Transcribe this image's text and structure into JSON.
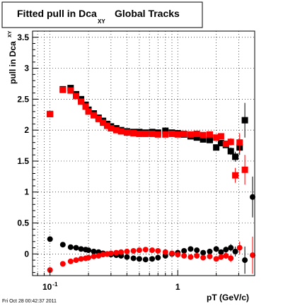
{
  "chart_data": {
    "type": "scatter",
    "title": "Fitted pull in Dca",
    "title_subscript": "XY",
    "title_suffix": "Global Tracks",
    "xlabel": "pT (GeV/c)",
    "ylabel": "pull in Dca",
    "ylabel_subscript": "XY",
    "x_scale": "log",
    "xlim": [
      0.073,
      4.0
    ],
    "ylim": [
      -0.35,
      3.6
    ],
    "grid": true,
    "footer": "Fri Oct 28 00:42:37 2011",
    "x_ticks": [
      {
        "value": 0.1,
        "label": "10",
        "exponent": "-1"
      },
      {
        "value": 1,
        "label": "1"
      }
    ],
    "y_ticks": [
      {
        "value": 0,
        "label": "0"
      },
      {
        "value": 0.5,
        "label": "0.5"
      },
      {
        "value": 1,
        "label": "1"
      },
      {
        "value": 1.5,
        "label": "1.5"
      },
      {
        "value": 2,
        "label": "2"
      },
      {
        "value": 2.5,
        "label": "2.5"
      },
      {
        "value": 3,
        "label": "3"
      },
      {
        "value": 3.5,
        "label": "3.5"
      }
    ],
    "series": [
      {
        "color": "#000000",
        "marker": "square",
        "points": [
          {
            "x": 0.1,
            "y": 2.26,
            "err": 0.01
          },
          {
            "x": 0.126,
            "y": 2.66,
            "err": 0.01
          },
          {
            "x": 0.145,
            "y": 2.68,
            "err": 0.01
          },
          {
            "x": 0.16,
            "y": 2.58,
            "err": 0.01
          },
          {
            "x": 0.175,
            "y": 2.5,
            "err": 0.01
          },
          {
            "x": 0.19,
            "y": 2.41,
            "err": 0.01
          },
          {
            "x": 0.2,
            "y": 2.33,
            "err": 0.01
          },
          {
            "x": 0.22,
            "y": 2.27,
            "err": 0.01
          },
          {
            "x": 0.24,
            "y": 2.2,
            "err": 0.01
          },
          {
            "x": 0.26,
            "y": 2.15,
            "err": 0.01
          },
          {
            "x": 0.28,
            "y": 2.1,
            "err": 0.01
          },
          {
            "x": 0.3,
            "y": 2.06,
            "err": 0.01
          },
          {
            "x": 0.33,
            "y": 2.03,
            "err": 0.01
          },
          {
            "x": 0.36,
            "y": 2.0,
            "err": 0.01
          },
          {
            "x": 0.4,
            "y": 1.98,
            "err": 0.01
          },
          {
            "x": 0.45,
            "y": 1.97,
            "err": 0.01
          },
          {
            "x": 0.5,
            "y": 1.97,
            "err": 0.01
          },
          {
            "x": 0.56,
            "y": 1.96,
            "err": 0.01
          },
          {
            "x": 0.63,
            "y": 1.97,
            "err": 0.01
          },
          {
            "x": 0.7,
            "y": 1.96,
            "err": 0.01
          },
          {
            "x": 0.8,
            "y": 1.99,
            "err": 0.01
          },
          {
            "x": 0.9,
            "y": 1.96,
            "err": 0.01
          },
          {
            "x": 1.0,
            "y": 1.95,
            "err": 0.01
          },
          {
            "x": 1.12,
            "y": 1.93,
            "err": 0.01
          },
          {
            "x": 1.26,
            "y": 1.9,
            "err": 0.01
          },
          {
            "x": 1.41,
            "y": 1.88,
            "err": 0.01
          },
          {
            "x": 1.58,
            "y": 1.85,
            "err": 0.02
          },
          {
            "x": 1.78,
            "y": 1.84,
            "err": 0.02
          },
          {
            "x": 2.0,
            "y": 1.72,
            "err": 0.03
          },
          {
            "x": 2.18,
            "y": 1.79,
            "err": 0.04
          },
          {
            "x": 2.38,
            "y": 1.76,
            "err": 0.05
          },
          {
            "x": 2.6,
            "y": 1.66,
            "err": 0.06
          },
          {
            "x": 2.82,
            "y": 1.57,
            "err": 0.08
          },
          {
            "x": 3.05,
            "y": 1.72,
            "err": 0.12
          },
          {
            "x": 3.35,
            "y": 2.16,
            "err": 0.28
          }
        ]
      },
      {
        "color": "#ff0000",
        "marker": "square",
        "points": [
          {
            "x": 0.1,
            "y": 2.26,
            "err": 0.01
          },
          {
            "x": 0.126,
            "y": 2.65,
            "err": 0.01
          },
          {
            "x": 0.145,
            "y": 2.64,
            "err": 0.01
          },
          {
            "x": 0.16,
            "y": 2.55,
            "err": 0.01
          },
          {
            "x": 0.175,
            "y": 2.46,
            "err": 0.01
          },
          {
            "x": 0.19,
            "y": 2.38,
            "err": 0.01
          },
          {
            "x": 0.2,
            "y": 2.3,
            "err": 0.01
          },
          {
            "x": 0.22,
            "y": 2.24,
            "err": 0.01
          },
          {
            "x": 0.24,
            "y": 2.18,
            "err": 0.01
          },
          {
            "x": 0.26,
            "y": 2.12,
            "err": 0.01
          },
          {
            "x": 0.28,
            "y": 2.07,
            "err": 0.01
          },
          {
            "x": 0.3,
            "y": 2.03,
            "err": 0.01
          },
          {
            "x": 0.33,
            "y": 2.0,
            "err": 0.01
          },
          {
            "x": 0.36,
            "y": 1.98,
            "err": 0.01
          },
          {
            "x": 0.4,
            "y": 1.96,
            "err": 0.01
          },
          {
            "x": 0.45,
            "y": 1.95,
            "err": 0.01
          },
          {
            "x": 0.5,
            "y": 1.94,
            "err": 0.01
          },
          {
            "x": 0.56,
            "y": 1.94,
            "err": 0.01
          },
          {
            "x": 0.63,
            "y": 1.94,
            "err": 0.01
          },
          {
            "x": 0.7,
            "y": 1.93,
            "err": 0.01
          },
          {
            "x": 0.8,
            "y": 1.93,
            "err": 0.01
          },
          {
            "x": 0.9,
            "y": 1.94,
            "err": 0.01
          },
          {
            "x": 1.0,
            "y": 1.93,
            "err": 0.01
          },
          {
            "x": 1.12,
            "y": 1.94,
            "err": 0.01
          },
          {
            "x": 1.26,
            "y": 1.93,
            "err": 0.01
          },
          {
            "x": 1.41,
            "y": 1.94,
            "err": 0.02
          },
          {
            "x": 1.58,
            "y": 1.92,
            "err": 0.02
          },
          {
            "x": 1.78,
            "y": 1.93,
            "err": 0.02
          },
          {
            "x": 2.0,
            "y": 1.88,
            "err": 0.03
          },
          {
            "x": 2.18,
            "y": 1.9,
            "err": 0.04
          },
          {
            "x": 2.38,
            "y": 1.78,
            "err": 0.05
          },
          {
            "x": 2.6,
            "y": 1.81,
            "err": 0.06
          },
          {
            "x": 2.82,
            "y": 1.27,
            "err": 0.12
          },
          {
            "x": 3.05,
            "y": 1.8,
            "err": 0.15
          },
          {
            "x": 3.35,
            "y": 1.36,
            "err": 0.24
          }
        ]
      },
      {
        "color": "#000000",
        "marker": "circle",
        "points": [
          {
            "x": 0.1,
            "y": 0.24,
            "err": 0.01
          },
          {
            "x": 0.126,
            "y": 0.15,
            "err": 0.01
          },
          {
            "x": 0.145,
            "y": 0.11,
            "err": 0.01
          },
          {
            "x": 0.16,
            "y": 0.1,
            "err": 0.01
          },
          {
            "x": 0.175,
            "y": 0.08,
            "err": 0.01
          },
          {
            "x": 0.19,
            "y": 0.07,
            "err": 0.01
          },
          {
            "x": 0.2,
            "y": 0.06,
            "err": 0.01
          },
          {
            "x": 0.22,
            "y": 0.04,
            "err": 0.01
          },
          {
            "x": 0.24,
            "y": 0.03,
            "err": 0.01
          },
          {
            "x": 0.26,
            "y": 0.01,
            "err": 0.01
          },
          {
            "x": 0.28,
            "y": 0.0,
            "err": 0.01
          },
          {
            "x": 0.3,
            "y": -0.01,
            "err": 0.01
          },
          {
            "x": 0.33,
            "y": -0.02,
            "err": 0.01
          },
          {
            "x": 0.36,
            "y": -0.03,
            "err": 0.01
          },
          {
            "x": 0.4,
            "y": -0.05,
            "err": 0.01
          },
          {
            "x": 0.45,
            "y": -0.07,
            "err": 0.01
          },
          {
            "x": 0.5,
            "y": -0.08,
            "err": 0.01
          },
          {
            "x": 0.56,
            "y": -0.09,
            "err": 0.01
          },
          {
            "x": 0.63,
            "y": -0.08,
            "err": 0.01
          },
          {
            "x": 0.7,
            "y": -0.06,
            "err": 0.01
          },
          {
            "x": 0.8,
            "y": -0.03,
            "err": 0.01
          },
          {
            "x": 0.9,
            "y": 0.0,
            "err": 0.01
          },
          {
            "x": 1.0,
            "y": 0.02,
            "err": 0.01
          },
          {
            "x": 1.12,
            "y": 0.05,
            "err": 0.01
          },
          {
            "x": 1.26,
            "y": 0.08,
            "err": 0.01
          },
          {
            "x": 1.41,
            "y": 0.06,
            "err": 0.02
          },
          {
            "x": 1.58,
            "y": 0.02,
            "err": 0.02
          },
          {
            "x": 1.78,
            "y": 0.04,
            "err": 0.02
          },
          {
            "x": 2.0,
            "y": 0.08,
            "err": 0.03
          },
          {
            "x": 2.18,
            "y": 0.03,
            "err": 0.04
          },
          {
            "x": 2.38,
            "y": 0.07,
            "err": 0.05
          },
          {
            "x": 2.6,
            "y": 0.1,
            "err": 0.06
          },
          {
            "x": 2.82,
            "y": 0.04,
            "err": 0.08
          },
          {
            "x": 3.35,
            "y": -0.1,
            "err": 0.22
          },
          {
            "x": 3.85,
            "y": 0.92,
            "err": 0.33
          }
        ]
      },
      {
        "color": "#ff0000",
        "marker": "circle",
        "points": [
          {
            "x": 0.1,
            "y": -0.26,
            "err": 0.01
          },
          {
            "x": 0.126,
            "y": -0.16,
            "err": 0.01
          },
          {
            "x": 0.145,
            "y": -0.12,
            "err": 0.01
          },
          {
            "x": 0.16,
            "y": -0.1,
            "err": 0.01
          },
          {
            "x": 0.175,
            "y": -0.08,
            "err": 0.01
          },
          {
            "x": 0.19,
            "y": -0.07,
            "err": 0.01
          },
          {
            "x": 0.2,
            "y": -0.06,
            "err": 0.01
          },
          {
            "x": 0.22,
            "y": -0.04,
            "err": 0.01
          },
          {
            "x": 0.24,
            "y": -0.03,
            "err": 0.01
          },
          {
            "x": 0.26,
            "y": -0.01,
            "err": 0.01
          },
          {
            "x": 0.28,
            "y": 0.0,
            "err": 0.01
          },
          {
            "x": 0.3,
            "y": 0.01,
            "err": 0.01
          },
          {
            "x": 0.33,
            "y": 0.02,
            "err": 0.01
          },
          {
            "x": 0.36,
            "y": 0.03,
            "err": 0.01
          },
          {
            "x": 0.4,
            "y": 0.04,
            "err": 0.01
          },
          {
            "x": 0.45,
            "y": 0.05,
            "err": 0.01
          },
          {
            "x": 0.5,
            "y": 0.06,
            "err": 0.01
          },
          {
            "x": 0.56,
            "y": 0.07,
            "err": 0.01
          },
          {
            "x": 0.63,
            "y": 0.06,
            "err": 0.01
          },
          {
            "x": 0.7,
            "y": 0.05,
            "err": 0.01
          },
          {
            "x": 0.8,
            "y": 0.03,
            "err": 0.01
          },
          {
            "x": 0.9,
            "y": 0.01,
            "err": 0.01
          },
          {
            "x": 1.0,
            "y": -0.01,
            "err": 0.01
          },
          {
            "x": 1.12,
            "y": -0.03,
            "err": 0.01
          },
          {
            "x": 1.26,
            "y": -0.05,
            "err": 0.01
          },
          {
            "x": 1.41,
            "y": -0.03,
            "err": 0.02
          },
          {
            "x": 1.58,
            "y": -0.06,
            "err": 0.02
          },
          {
            "x": 1.78,
            "y": -0.04,
            "err": 0.02
          },
          {
            "x": 2.0,
            "y": -0.08,
            "err": 0.03
          },
          {
            "x": 2.18,
            "y": -0.05,
            "err": 0.04
          },
          {
            "x": 2.38,
            "y": -0.03,
            "err": 0.05
          },
          {
            "x": 2.6,
            "y": -0.07,
            "err": 0.06
          },
          {
            "x": 3.05,
            "y": 0.1,
            "err": 0.1
          },
          {
            "x": 3.85,
            "y": -0.02,
            "err": 0.3
          }
        ]
      }
    ]
  }
}
